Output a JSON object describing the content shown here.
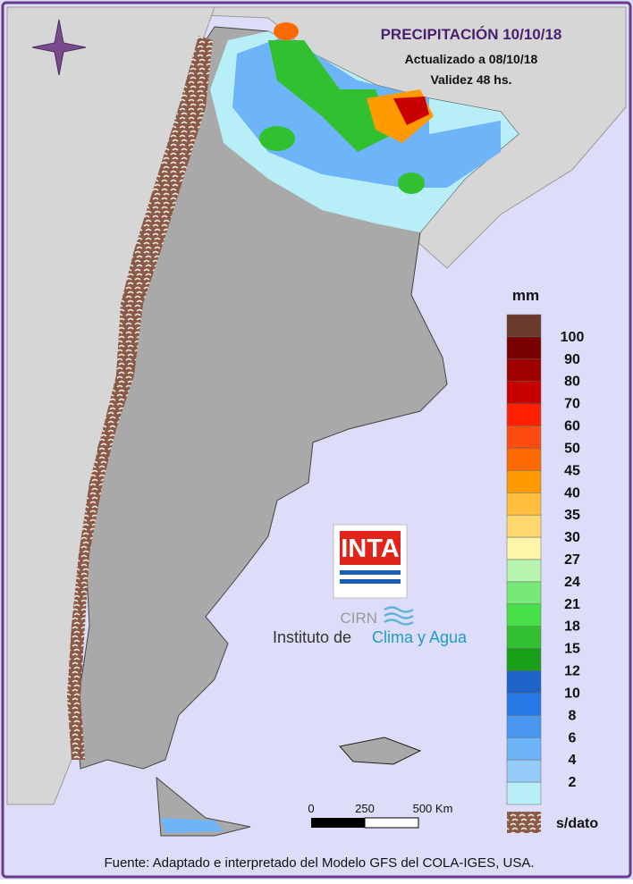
{
  "header": {
    "title": "PRECIPITACIÓN 10/10/18",
    "updated": "Actualizado a 08/10/18",
    "validity": "Validez 48 hs."
  },
  "legend": {
    "unit": "mm",
    "colors": [
      "#6b3a2e",
      "#7a0000",
      "#a00000",
      "#c80000",
      "#ff2000",
      "#ff4a10",
      "#ff6a00",
      "#ff9a00",
      "#ffbe40",
      "#ffd870",
      "#fff5a8",
      "#b8f5b0",
      "#78e878",
      "#48e048",
      "#30c030",
      "#18a018",
      "#1e64c8",
      "#2878e6",
      "#4896f0",
      "#6eb4f8",
      "#96ccfa",
      "#b8eef8"
    ],
    "labels": [
      "100",
      "90",
      "80",
      "70",
      "60",
      "50",
      "45",
      "40",
      "35",
      "30",
      "27",
      "24",
      "21",
      "18",
      "15",
      "12",
      "10",
      "8",
      "6",
      "4",
      "2"
    ],
    "no_data": "s/dato"
  },
  "scale": {
    "labels": [
      "0",
      "250",
      "500 Km"
    ]
  },
  "logo": {
    "brand": "INTA",
    "center": "CIRN",
    "institute": "Instituto de",
    "institute_name": "Clima y Agua"
  },
  "footer": "Fuente: Adaptado e interpretado del Modelo GFS del COLA-IGES, USA."
}
